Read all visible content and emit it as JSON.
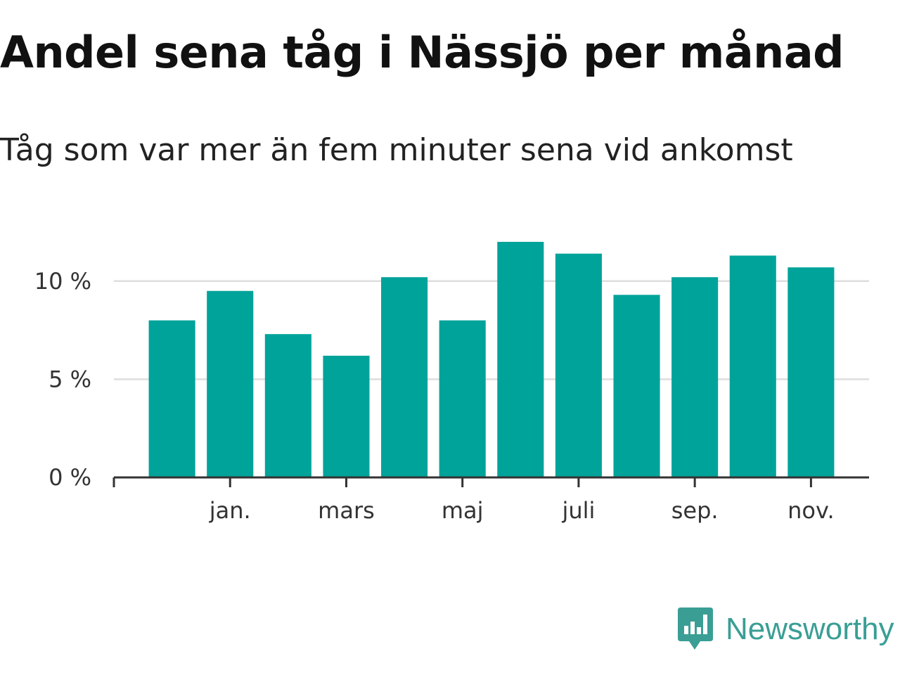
{
  "title": "Andel sena tåg i Nässjö per månad",
  "subtitle": "Tåg som var mer än fem minuter sena vid ankomst",
  "brand": {
    "name": "Newsworthy",
    "color": "#3a9e95",
    "icon": "newsworthy-logo-icon"
  },
  "colors": {
    "bar": "#00a39a",
    "grid": "#dddddd",
    "axis": "#333333"
  },
  "chart_data": {
    "type": "bar",
    "y_tick_labels": [
      "0 %",
      "5 %",
      "10 %"
    ],
    "y_ticks": [
      0,
      5,
      10
    ],
    "ylim": [
      0,
      12.5
    ],
    "x_tick_labels": [
      "jan.",
      "mars",
      "maj",
      "juli",
      "sep.",
      "nov."
    ],
    "x_tick_positions": [
      1,
      3,
      5,
      7,
      9,
      11
    ],
    "x_range": [
      -1,
      12
    ],
    "x": [
      0,
      1,
      2,
      3,
      4,
      5,
      6,
      7,
      8,
      9,
      10,
      11
    ],
    "values": [
      8.0,
      9.5,
      7.3,
      6.2,
      10.2,
      8.0,
      12.0,
      11.4,
      9.3,
      10.2,
      11.3,
      10.7
    ],
    "grid": true
  }
}
